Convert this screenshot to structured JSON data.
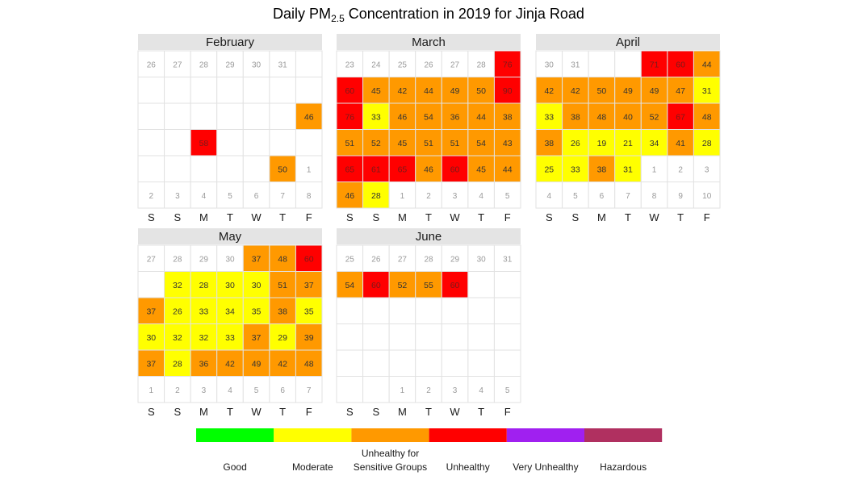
{
  "chart_data": {
    "type": "heatmap",
    "title_prefix": "Daily PM",
    "title_subscript": "2.5",
    "title_suffix": " Concentration in 2019 for Jinja Road",
    "weekday_labels": [
      "S",
      "S",
      "M",
      "T",
      "W",
      "T",
      "F"
    ],
    "category_colors": {
      "moderate": "#ffff00",
      "usg": "#ff9900",
      "unhealthy": "#ff0000"
    },
    "months": [
      {
        "name": "February",
        "cells": [
          [
            26,
            "out"
          ],
          [
            27,
            "out"
          ],
          [
            28,
            "out"
          ],
          [
            29,
            "out"
          ],
          [
            30,
            "out"
          ],
          [
            31,
            "out"
          ],
          [
            null,
            "empty"
          ],
          [
            null,
            "empty"
          ],
          [
            null,
            "empty"
          ],
          [
            null,
            "empty"
          ],
          [
            null,
            "empty"
          ],
          [
            null,
            "empty"
          ],
          [
            null,
            "empty"
          ],
          [
            null,
            "empty"
          ],
          [
            null,
            "empty"
          ],
          [
            null,
            "empty"
          ],
          [
            null,
            "empty"
          ],
          [
            null,
            "empty"
          ],
          [
            null,
            "empty"
          ],
          [
            null,
            "empty"
          ],
          [
            46,
            "usg"
          ],
          [
            null,
            "empty"
          ],
          [
            null,
            "empty"
          ],
          [
            58,
            "unhealthy"
          ],
          [
            null,
            "empty"
          ],
          [
            null,
            "empty"
          ],
          [
            null,
            "empty"
          ],
          [
            null,
            "empty"
          ],
          [
            null,
            "empty"
          ],
          [
            null,
            "empty"
          ],
          [
            null,
            "empty"
          ],
          [
            null,
            "empty"
          ],
          [
            null,
            "empty"
          ],
          [
            50,
            "usg"
          ],
          [
            1,
            "out"
          ],
          [
            2,
            "out"
          ],
          [
            3,
            "out"
          ],
          [
            4,
            "out"
          ],
          [
            5,
            "out"
          ],
          [
            6,
            "out"
          ],
          [
            7,
            "out"
          ],
          [
            8,
            "out"
          ]
        ]
      },
      {
        "name": "March",
        "cells": [
          [
            23,
            "out"
          ],
          [
            24,
            "out"
          ],
          [
            25,
            "out"
          ],
          [
            26,
            "out"
          ],
          [
            27,
            "out"
          ],
          [
            28,
            "out"
          ],
          [
            76,
            "unhealthy"
          ],
          [
            60,
            "unhealthy"
          ],
          [
            45,
            "usg"
          ],
          [
            42,
            "usg"
          ],
          [
            44,
            "usg"
          ],
          [
            49,
            "usg"
          ],
          [
            50,
            "usg"
          ],
          [
            90,
            "unhealthy"
          ],
          [
            76,
            "unhealthy"
          ],
          [
            33,
            "moderate"
          ],
          [
            46,
            "usg"
          ],
          [
            54,
            "usg"
          ],
          [
            36,
            "usg"
          ],
          [
            44,
            "usg"
          ],
          [
            38,
            "usg"
          ],
          [
            51,
            "usg"
          ],
          [
            52,
            "usg"
          ],
          [
            45,
            "usg"
          ],
          [
            51,
            "usg"
          ],
          [
            51,
            "usg"
          ],
          [
            54,
            "usg"
          ],
          [
            43,
            "usg"
          ],
          [
            65,
            "unhealthy"
          ],
          [
            61,
            "unhealthy"
          ],
          [
            65,
            "unhealthy"
          ],
          [
            46,
            "usg"
          ],
          [
            60,
            "unhealthy"
          ],
          [
            45,
            "usg"
          ],
          [
            44,
            "usg"
          ],
          [
            46,
            "usg"
          ],
          [
            28,
            "moderate"
          ],
          [
            1,
            "out"
          ],
          [
            2,
            "out"
          ],
          [
            3,
            "out"
          ],
          [
            4,
            "out"
          ],
          [
            5,
            "out"
          ]
        ]
      },
      {
        "name": "April",
        "cells": [
          [
            30,
            "out"
          ],
          [
            31,
            "out"
          ],
          [
            null,
            "empty"
          ],
          [
            null,
            "empty"
          ],
          [
            71,
            "unhealthy"
          ],
          [
            60,
            "unhealthy"
          ],
          [
            44,
            "usg"
          ],
          [
            42,
            "usg"
          ],
          [
            42,
            "usg"
          ],
          [
            50,
            "usg"
          ],
          [
            49,
            "usg"
          ],
          [
            49,
            "usg"
          ],
          [
            47,
            "usg"
          ],
          [
            31,
            "moderate"
          ],
          [
            33,
            "moderate"
          ],
          [
            38,
            "usg"
          ],
          [
            48,
            "usg"
          ],
          [
            40,
            "usg"
          ],
          [
            52,
            "usg"
          ],
          [
            67,
            "unhealthy"
          ],
          [
            48,
            "usg"
          ],
          [
            38,
            "usg"
          ],
          [
            26,
            "moderate"
          ],
          [
            19,
            "moderate"
          ],
          [
            21,
            "moderate"
          ],
          [
            34,
            "moderate"
          ],
          [
            41,
            "usg"
          ],
          [
            28,
            "moderate"
          ],
          [
            25,
            "moderate"
          ],
          [
            33,
            "moderate"
          ],
          [
            38,
            "usg"
          ],
          [
            31,
            "moderate"
          ],
          [
            1,
            "out"
          ],
          [
            2,
            "out"
          ],
          [
            3,
            "out"
          ],
          [
            4,
            "out"
          ],
          [
            5,
            "out"
          ],
          [
            6,
            "out"
          ],
          [
            7,
            "out"
          ],
          [
            8,
            "out"
          ],
          [
            9,
            "out"
          ],
          [
            10,
            "out"
          ]
        ]
      },
      {
        "name": "May",
        "cells": [
          [
            27,
            "out"
          ],
          [
            28,
            "out"
          ],
          [
            29,
            "out"
          ],
          [
            30,
            "out"
          ],
          [
            37,
            "usg"
          ],
          [
            48,
            "usg"
          ],
          [
            60,
            "unhealthy"
          ],
          [
            null,
            "empty"
          ],
          [
            32,
            "moderate"
          ],
          [
            28,
            "moderate"
          ],
          [
            30,
            "moderate"
          ],
          [
            30,
            "moderate"
          ],
          [
            51,
            "usg"
          ],
          [
            37,
            "usg"
          ],
          [
            37,
            "usg"
          ],
          [
            26,
            "moderate"
          ],
          [
            33,
            "moderate"
          ],
          [
            34,
            "moderate"
          ],
          [
            35,
            "moderate"
          ],
          [
            38,
            "usg"
          ],
          [
            35,
            "moderate"
          ],
          [
            30,
            "moderate"
          ],
          [
            32,
            "moderate"
          ],
          [
            32,
            "moderate"
          ],
          [
            33,
            "moderate"
          ],
          [
            37,
            "usg"
          ],
          [
            29,
            "moderate"
          ],
          [
            39,
            "usg"
          ],
          [
            37,
            "usg"
          ],
          [
            28,
            "moderate"
          ],
          [
            36,
            "usg"
          ],
          [
            42,
            "usg"
          ],
          [
            49,
            "usg"
          ],
          [
            42,
            "usg"
          ],
          [
            48,
            "usg"
          ],
          [
            1,
            "out"
          ],
          [
            2,
            "out"
          ],
          [
            3,
            "out"
          ],
          [
            4,
            "out"
          ],
          [
            5,
            "out"
          ],
          [
            6,
            "out"
          ],
          [
            7,
            "out"
          ]
        ]
      },
      {
        "name": "June",
        "cells": [
          [
            25,
            "out"
          ],
          [
            26,
            "out"
          ],
          [
            27,
            "out"
          ],
          [
            28,
            "out"
          ],
          [
            29,
            "out"
          ],
          [
            30,
            "out"
          ],
          [
            31,
            "out"
          ],
          [
            54,
            "usg"
          ],
          [
            60,
            "unhealthy"
          ],
          [
            52,
            "usg"
          ],
          [
            55,
            "usg"
          ],
          [
            60,
            "unhealthy"
          ],
          [
            null,
            "empty"
          ],
          [
            null,
            "empty"
          ],
          [
            null,
            "empty"
          ],
          [
            null,
            "empty"
          ],
          [
            null,
            "empty"
          ],
          [
            null,
            "empty"
          ],
          [
            null,
            "empty"
          ],
          [
            null,
            "empty"
          ],
          [
            null,
            "empty"
          ],
          [
            null,
            "empty"
          ],
          [
            null,
            "empty"
          ],
          [
            null,
            "empty"
          ],
          [
            null,
            "empty"
          ],
          [
            null,
            "empty"
          ],
          [
            null,
            "empty"
          ],
          [
            null,
            "empty"
          ],
          [
            null,
            "empty"
          ],
          [
            null,
            "empty"
          ],
          [
            null,
            "empty"
          ],
          [
            null,
            "empty"
          ],
          [
            null,
            "empty"
          ],
          [
            null,
            "empty"
          ],
          [
            null,
            "empty"
          ],
          [
            null,
            "empty"
          ],
          [
            null,
            "empty"
          ],
          [
            1,
            "out"
          ],
          [
            2,
            "out"
          ],
          [
            3,
            "out"
          ],
          [
            4,
            "out"
          ],
          [
            5,
            "out"
          ]
        ]
      }
    ],
    "legend": [
      {
        "label": "Good",
        "color": "#00ff00"
      },
      {
        "label": "Moderate",
        "color": "#ffff00"
      },
      {
        "label": "Unhealthy for Sensitive Groups",
        "color": "#ff9900"
      },
      {
        "label": "Unhealthy",
        "color": "#ff0000"
      },
      {
        "label": "Very Unhealthy",
        "color": "#a020f0"
      },
      {
        "label": "Hazardous",
        "color": "#b03060"
      }
    ]
  }
}
